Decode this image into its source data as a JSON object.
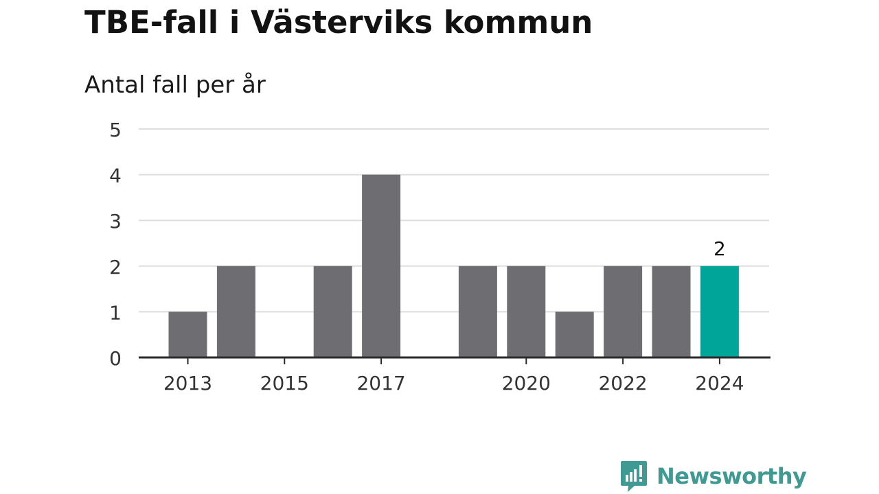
{
  "header": {
    "title": "TBE-fall i Västerviks kommun",
    "subtitle": "Antal fall per år"
  },
  "branding": {
    "logo_text": "Newsworthy",
    "logo_color": "#3e9a92"
  },
  "colors": {
    "bar_default": "#6e6d72",
    "bar_highlight": "#00a59a",
    "gridline": "#dedede",
    "axis": "#2a2a2a",
    "tick_text": "#333333"
  },
  "chart_data": {
    "type": "bar",
    "categories": [
      "2013",
      "2014",
      "2015",
      "2016",
      "2017",
      "2018",
      "2019",
      "2020",
      "2021",
      "2022",
      "2023",
      "2024"
    ],
    "values": [
      1,
      2,
      0,
      2,
      4,
      0,
      2,
      2,
      1,
      2,
      2,
      2
    ],
    "highlight_index": 11,
    "highlight_label": "2",
    "x_tick_labels": [
      "2013",
      "2015",
      "2017",
      "2020",
      "2022",
      "2024"
    ],
    "y_ticks": [
      "0",
      "1",
      "2",
      "3",
      "4",
      "5"
    ],
    "ylim": [
      0,
      5
    ],
    "grid": true,
    "legend": false
  }
}
